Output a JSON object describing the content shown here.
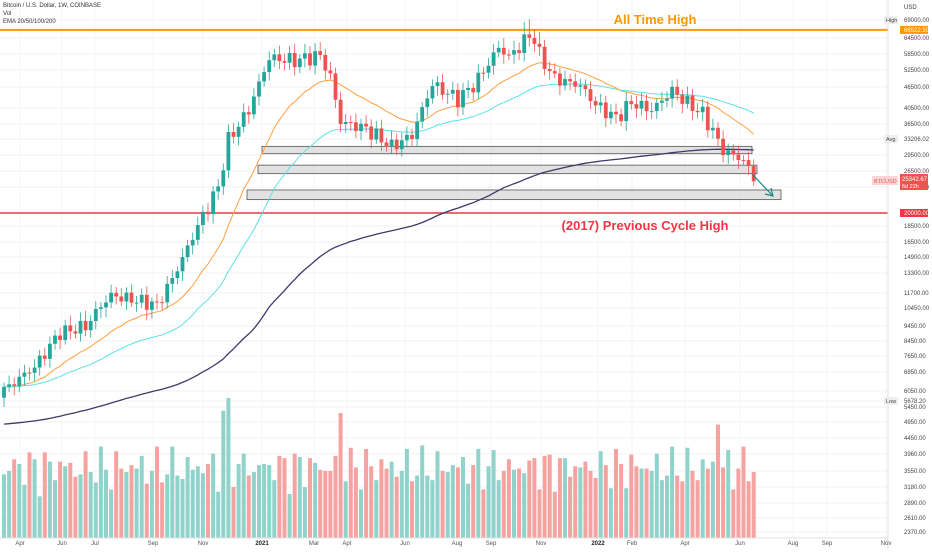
{
  "header": {
    "symbol_line": "Bitcoin / U.S. Dollar, 1W, COINBASE",
    "vol_label": "Vol",
    "ema_label": "EMA 20/50/100/200"
  },
  "annotations": {
    "ath_text": "All Time High",
    "prev_cycle_text": "(2017) Previous Cycle High"
  },
  "colors": {
    "up": "#26a69a",
    "down": "#ef5350",
    "vol_up": "#8fd3cb",
    "vol_down": "#f5a3a1",
    "ath_line": "#ff9800",
    "prev_high_line": "#f23645",
    "ema20": "#ff9f43",
    "ema50": "#5ce1e6",
    "ema200": "#3d3a6b",
    "zone_fill": "#d6d6d6",
    "zone_stroke": "#555555",
    "arrow": "#1a8a84"
  },
  "chart_data": {
    "type": "candlestick",
    "title": "Bitcoin / U.S. Dollar, 1W, COINBASE",
    "price_axis": {
      "currency": "USD",
      "labels": [
        "69000.00",
        "64500.00",
        "58500.00",
        "52500.00",
        "46500.00",
        "40500.00",
        "36500.00",
        "33206.02",
        "29500.00",
        "26500.00",
        "23500.00",
        "20000.00",
        "18500.00",
        "16500.00",
        "14900.00",
        "13300.00",
        "11700.00",
        "10450.00",
        "9450.00",
        "8450.00",
        "7650.00",
        "6850.00",
        "6050.00",
        "5678.20",
        "5450.00",
        "4950.00",
        "4450.00",
        "3960.00",
        "3550.00",
        "3180.00",
        "2890.00",
        "2610.00",
        "2370.00"
      ],
      "ticks": [
        69000,
        64500,
        58500,
        52500,
        46500,
        40500,
        36500,
        33206.02,
        29500,
        26500,
        23500,
        20000,
        18500,
        16500,
        14900,
        13300,
        11700,
        10450,
        9450,
        8450,
        7650,
        6850,
        6050,
        5678.2,
        5450,
        4950,
        4450,
        3960,
        3550,
        3180,
        2890,
        2610,
        2370
      ],
      "high_label": "High",
      "high_value": "69000.00",
      "ath_line_value": "66522.50",
      "avg_label": "Avg",
      "avg_value": "33206.02",
      "current_symbol": "BTCUSD",
      "current_value": "25342.67",
      "current_countdown": "6d 22h",
      "prev_high_value": "20000.00",
      "low_label": "Low",
      "low_value": "5678.20"
    },
    "time_axis": {
      "labels": [
        "Apr",
        "Jun",
        "Jul",
        "Sep",
        "Nov",
        "2021",
        "Mar",
        "Apr",
        "Jun",
        "Aug",
        "Sep",
        "Nov",
        "2022",
        "Feb",
        "Apr",
        "Jun",
        "Aug",
        "Sep",
        "Nov"
      ]
    },
    "candles": [],
    "volume": [],
    "ema_series": [
      {
        "name": "EMA 20"
      },
      {
        "name": "EMA 50"
      },
      {
        "name": "EMA 200"
      }
    ],
    "levels": {
      "all_time_high": 66522.5,
      "previous_cycle_high_2017": 20000
    },
    "zones": [
      {
        "low": 29800,
        "high": 31500
      },
      {
        "low": 26000,
        "high": 27600
      },
      {
        "low": 21800,
        "high": 23100
      }
    ]
  }
}
